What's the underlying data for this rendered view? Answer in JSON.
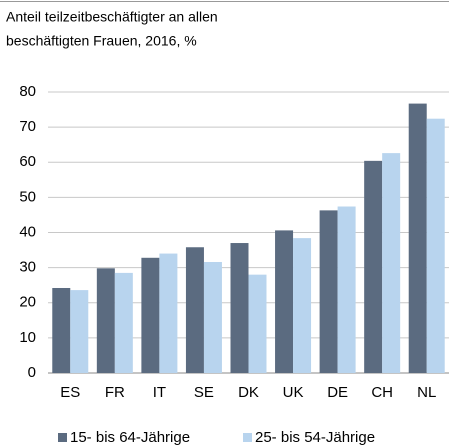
{
  "chart_data": {
    "type": "bar",
    "title": [
      "Anteil teilzeitbeschäftigter an allen",
      "beschäftigten Frauen, 2016, %"
    ],
    "categories": [
      "ES",
      "FR",
      "IT",
      "SE",
      "DK",
      "UK",
      "DE",
      "CH",
      "NL"
    ],
    "series": [
      {
        "name": "15- bis 64-Jährige",
        "color": "#5b6b80",
        "values": [
          24.2,
          29.8,
          32.8,
          35.8,
          37.0,
          40.6,
          46.3,
          60.4,
          76.7
        ]
      },
      {
        "name": "25- bis 54-Jährige",
        "color": "#b8d4ee",
        "values": [
          23.6,
          28.5,
          34.0,
          31.6,
          28.0,
          38.4,
          47.4,
          62.6,
          72.4
        ]
      }
    ],
    "ylim": [
      0,
      80
    ],
    "yticks": [
      0,
      10,
      20,
      30,
      40,
      50,
      60,
      70,
      80
    ],
    "grid": true,
    "legend": "bottom"
  }
}
